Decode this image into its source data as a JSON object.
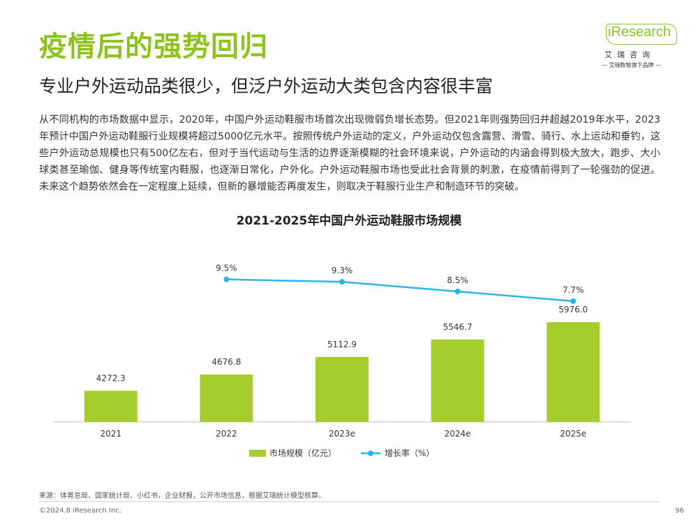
{
  "header": {
    "title": "疫情后的强势回归",
    "subtitle": "专业户外运动品类很少，但泛户外运动大类包含内容很丰富"
  },
  "logo": {
    "brand": "iResearch",
    "cn": "艾瑞咨询",
    "slogan": "— 艾瑞数智旗下品牌 —"
  },
  "body": {
    "paragraph": "从不同机构的市场数据中显示，2020年，中国户外运动鞋服市场首次出现微弱负增长态势。但2021年则强势回归并超越2019年水平，2023年预计中国户外运动鞋服行业规模将超过5000亿元水平。按照传统户外运动的定义，户外运动仅包含露营、滑雪、骑行、水上运动和垂钓，这些户外运动总规模也只有500亿左右，但对于当代运动与生活的边界逐渐模糊的社会环境来说，户外运动的内涵会得到极大放大，跑步、大小球类甚至瑜伽、健身等传统室内鞋服，也逐渐日常化，户外化。户外运动鞋服市场也受此社会背景的刺激，在疫情前得到了一轮强劲的促进。未来这个趋势依然会在一定程度上延续，但新的暴增能否再度发生，则取决于鞋服行业生产和制造环节的突破。"
  },
  "chart_data": {
    "type": "bar",
    "title": "2021-2025年中国户外运动鞋服市场规模",
    "categories": [
      "2021",
      "2022",
      "2023e",
      "2024e",
      "2025e"
    ],
    "series": [
      {
        "name": "市场规模（亿元）",
        "kind": "bar",
        "values": [
          4272.3,
          4676.8,
          5112.9,
          5546.7,
          5976.0
        ],
        "labels": [
          "4272.3",
          "4676.8",
          "5112.9",
          "5546.7",
          "5976.0"
        ],
        "color": "#a5ce2d"
      },
      {
        "name": "增长率（%）",
        "kind": "line",
        "x": [
          "2022",
          "2023e",
          "2024e",
          "2025e"
        ],
        "values": [
          9.5,
          9.3,
          8.5,
          7.7
        ],
        "labels": [
          "9.5%",
          "9.3%",
          "8.5%",
          "7.7%"
        ],
        "color": "#29b6e5"
      }
    ],
    "legend": "bottom-center"
  },
  "footer": {
    "source": "来源：体育总局、国家统计局、小红书，企业财报，公开市场信息，根据艾瑞统计模型核算。",
    "copyright": "©2024.8 iResearch Inc.",
    "page": "96"
  }
}
